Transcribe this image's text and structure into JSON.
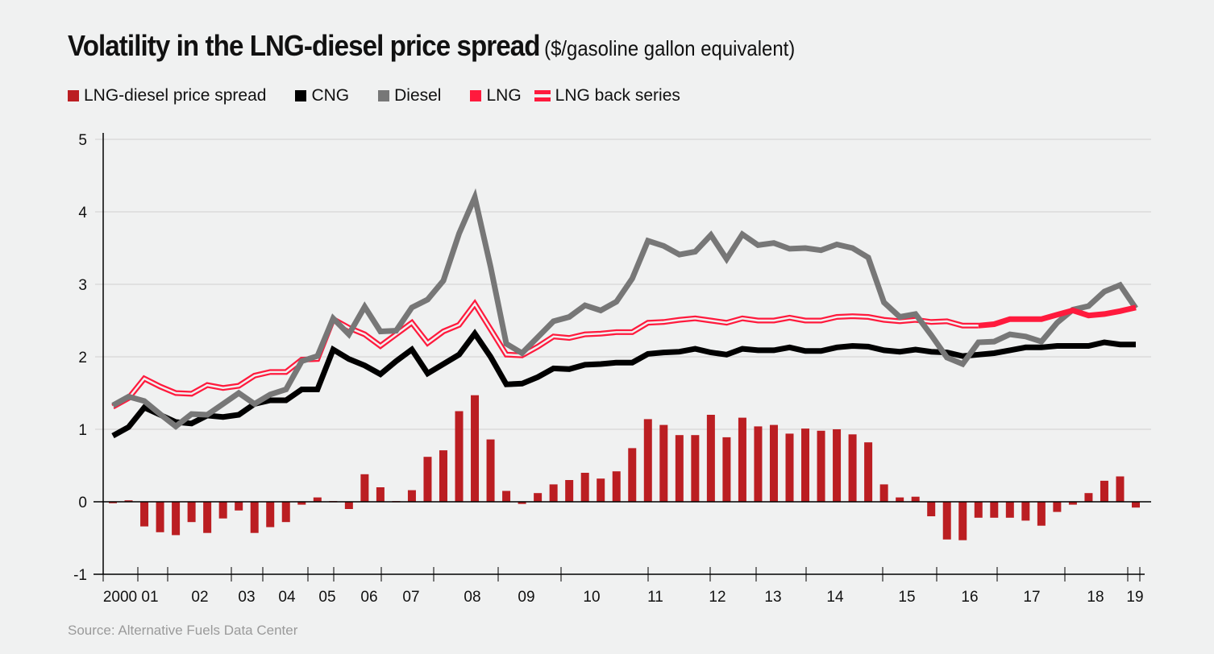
{
  "title": "Volatility in the LNG-diesel price spread",
  "subtitle": "($/gasoline gallon equivalent)",
  "legend": [
    {
      "label": "LNG-diesel price spread",
      "color": "#bb1e22",
      "style": "bar"
    },
    {
      "label": "CNG",
      "color": "#000000",
      "style": "solid"
    },
    {
      "label": "Diesel",
      "color": "#777777",
      "style": "solid"
    },
    {
      "label": "LNG",
      "color": "#ff1a3d",
      "style": "solid"
    },
    {
      "label": "LNG back series",
      "color": "#ff1a3d",
      "style": "double"
    }
  ],
  "source": "Source: Alternative Fuels Data Center",
  "chart_data": {
    "type": "line",
    "title": "Volatility in the LNG-diesel price spread",
    "subtitle": "($/gasoline gallon equivalent)",
    "xlabel": "",
    "ylabel": "",
    "ylim": [
      -1,
      5
    ],
    "yticks": [
      "-1",
      "0",
      "1",
      "2",
      "3",
      "4",
      "5"
    ],
    "grid": true,
    "legend_position": "top-left",
    "xtick_labels": [
      "2000",
      "01",
      "02",
      "03",
      "04",
      "05",
      "06",
      "07",
      "08",
      "09",
      "10",
      "11",
      "12",
      "13",
      "14",
      "15",
      "16",
      "17",
      "18",
      "19"
    ],
    "n_points": 66,
    "series": [
      {
        "name": "CNG",
        "color": "#000000",
        "values": [
          0.91,
          1.03,
          1.3,
          1.2,
          1.1,
          1.08,
          1.19,
          1.17,
          1.2,
          1.35,
          1.4,
          1.4,
          1.55,
          1.55,
          2.1,
          1.97,
          1.88,
          1.76,
          1.94,
          2.1,
          1.77,
          1.9,
          2.03,
          2.32,
          2.0,
          1.62,
          1.63,
          1.72,
          1.84,
          1.83,
          1.89,
          1.9,
          1.92,
          1.92,
          2.04,
          2.06,
          2.07,
          2.11,
          2.06,
          2.03,
          2.11,
          2.09,
          2.09,
          2.13,
          2.08,
          2.08,
          2.13,
          2.15,
          2.14,
          2.09,
          2.07,
          2.1,
          2.07,
          2.06,
          2.01,
          2.03,
          2.05,
          2.09,
          2.13,
          2.13,
          2.15,
          2.15,
          2.15,
          2.2,
          2.17,
          2.17
        ]
      },
      {
        "name": "Diesel",
        "color": "#777777",
        "values": [
          1.33,
          1.45,
          1.39,
          1.21,
          1.04,
          1.21,
          1.2,
          1.35,
          1.5,
          1.35,
          1.48,
          1.55,
          1.94,
          2.01,
          2.53,
          2.31,
          2.69,
          2.35,
          2.36,
          2.68,
          2.79,
          3.05,
          3.7,
          4.2,
          3.24,
          2.18,
          2.05,
          2.27,
          2.49,
          2.55,
          2.71,
          2.64,
          2.76,
          3.08,
          3.6,
          3.53,
          3.41,
          3.45,
          3.68,
          3.35,
          3.69,
          3.54,
          3.57,
          3.49,
          3.5,
          3.47,
          3.55,
          3.5,
          3.37,
          2.75,
          2.55,
          2.59,
          2.3,
          1.99,
          1.9,
          2.2,
          2.21,
          2.31,
          2.28,
          2.21,
          2.47,
          2.65,
          2.7,
          2.9,
          2.99,
          2.67
        ]
      },
      {
        "name": "LNG back series",
        "color": "#ff1a3d",
        "values": [
          1.31,
          1.43,
          1.7,
          1.59,
          1.5,
          1.49,
          1.61,
          1.57,
          1.6,
          1.74,
          1.79,
          1.79,
          1.96,
          1.97,
          2.52,
          2.4,
          2.31,
          2.15,
          2.31,
          2.47,
          2.19,
          2.35,
          2.44,
          2.73,
          2.38,
          2.03,
          2.02,
          2.14,
          2.28,
          2.26,
          2.31,
          2.32,
          2.34,
          2.34,
          2.47,
          2.48,
          2.51,
          2.53,
          2.5,
          2.47,
          2.53,
          2.5,
          2.5,
          2.54,
          2.5,
          2.5,
          2.55,
          2.56,
          2.55,
          2.51,
          2.49,
          2.51,
          2.48,
          2.49,
          2.43,
          2.43,
          null,
          null,
          null,
          null,
          null,
          null,
          null,
          null,
          null,
          null
        ]
      },
      {
        "name": "LNG",
        "color": "#ff1a3d",
        "values": [
          null,
          null,
          null,
          null,
          null,
          null,
          null,
          null,
          null,
          null,
          null,
          null,
          null,
          null,
          null,
          null,
          null,
          null,
          null,
          null,
          null,
          null,
          null,
          null,
          null,
          null,
          null,
          null,
          null,
          null,
          null,
          null,
          null,
          null,
          null,
          null,
          null,
          null,
          null,
          null,
          null,
          null,
          null,
          null,
          null,
          null,
          null,
          null,
          null,
          null,
          null,
          null,
          null,
          null,
          null,
          2.43,
          2.45,
          2.52,
          2.52,
          2.52,
          2.58,
          2.64,
          2.57,
          2.59,
          2.63,
          2.68
        ]
      },
      {
        "name": "LNG-diesel price spread",
        "color": "#bb1e22",
        "type": "bar",
        "values": [
          -0.02,
          0.02,
          -0.34,
          -0.42,
          -0.46,
          -0.28,
          -0.43,
          -0.23,
          -0.12,
          -0.43,
          -0.35,
          -0.28,
          -0.04,
          0.06,
          0.01,
          -0.1,
          0.38,
          0.2,
          0.01,
          0.16,
          0.62,
          0.71,
          1.25,
          1.47,
          0.86,
          0.15,
          -0.03,
          0.12,
          0.24,
          0.3,
          0.4,
          0.32,
          0.42,
          0.74,
          1.14,
          1.06,
          0.92,
          0.92,
          1.2,
          0.89,
          1.16,
          1.04,
          1.06,
          0.94,
          1.01,
          0.98,
          1.0,
          0.93,
          0.82,
          0.24,
          0.06,
          0.07,
          -0.2,
          -0.52,
          -0.53,
          -0.22,
          -0.22,
          -0.22,
          -0.26,
          -0.33,
          -0.14,
          -0.04,
          0.12,
          0.29,
          0.35,
          -0.08
        ]
      }
    ]
  }
}
